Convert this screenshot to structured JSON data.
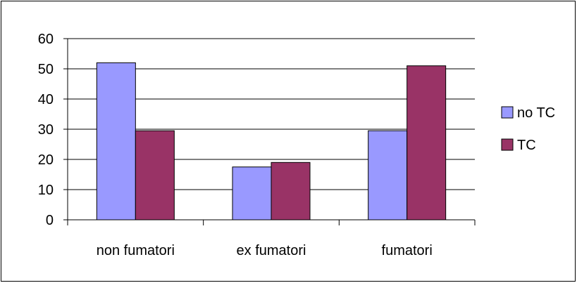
{
  "chart_data": {
    "type": "bar",
    "title": "",
    "xlabel": "",
    "ylabel": "",
    "categories": [
      "non fumatori",
      "ex fumatori",
      "fumatori"
    ],
    "series": [
      {
        "name": "no TC",
        "values": [
          52,
          17.5,
          29.5
        ],
        "color": "#9999ff"
      },
      {
        "name": "TC",
        "values": [
          29.5,
          19,
          51
        ],
        "color": "#993366"
      }
    ],
    "ylim": [
      0,
      60
    ],
    "yticks": [
      0,
      10,
      20,
      30,
      40,
      50,
      60
    ],
    "grid": true,
    "legend": "right"
  }
}
